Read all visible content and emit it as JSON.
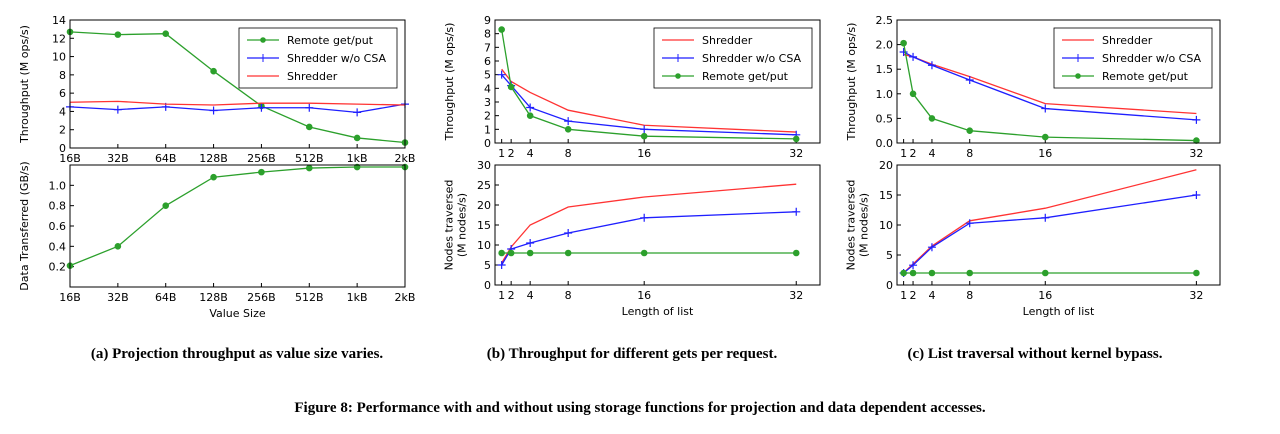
{
  "chart_data": [
    {
      "type": "line",
      "ylabel": "Throughput (M ops/s)",
      "categories": [
        "16B",
        "32B",
        "64B",
        "128B",
        "256B",
        "512B",
        "1kB",
        "2kB"
      ],
      "ylim": [
        0,
        14
      ],
      "yticks": [
        0,
        2,
        4,
        6,
        8,
        10,
        12,
        14
      ],
      "legend": "upper right",
      "series": [
        {
          "name": "Remote get/put",
          "color": "#2ca02c",
          "marker": "o",
          "values": [
            12.7,
            12.4,
            12.5,
            8.4,
            4.6,
            2.3,
            1.1,
            0.6
          ]
        },
        {
          "name": "Shredder w/o CSA",
          "color": "#1f1fff",
          "marker": "+",
          "values": [
            4.5,
            4.2,
            4.5,
            4.1,
            4.4,
            4.4,
            3.9,
            4.8
          ]
        },
        {
          "name": "Shredder",
          "color": "#ff3333",
          "marker": "none",
          "values": [
            5.0,
            5.1,
            4.8,
            4.7,
            4.9,
            4.9,
            4.8,
            4.7
          ]
        }
      ]
    },
    {
      "type": "line",
      "ylabel": "Data Transferred (GB/s)",
      "xlabel": "Value Size",
      "categories": [
        "16B",
        "32B",
        "64B",
        "128B",
        "256B",
        "512B",
        "1kB",
        "2kB"
      ],
      "ylim": [
        0,
        1.2
      ],
      "yticks": [
        0.2,
        0.4,
        0.6,
        0.8,
        {
          "value": 1.0,
          "label": "1.0"
        }
      ],
      "series": [
        {
          "color": "#2ca02c",
          "marker": "o",
          "values": [
            0.21,
            0.4,
            0.8,
            1.08,
            1.13,
            1.17,
            1.18,
            1.18
          ]
        }
      ]
    },
    {
      "type": "line",
      "ylabel": "Throughput (M ops/s)",
      "x": [
        1,
        2,
        4,
        8,
        16,
        32
      ],
      "xlim": [
        0.3,
        34.5
      ],
      "xticks": [
        1,
        2,
        4,
        8,
        16,
        32
      ],
      "ylim": [
        0,
        9
      ],
      "yticks": [
        0,
        1,
        2,
        3,
        4,
        5,
        6,
        7,
        8,
        9
      ],
      "legend": "upper right",
      "series": [
        {
          "name": "Shredder",
          "color": "#ff3333",
          "marker": "none",
          "values": [
            5.4,
            4.5,
            3.7,
            2.4,
            1.3,
            0.8
          ]
        },
        {
          "name": "Shredder w/o CSA",
          "color": "#1f1fff",
          "marker": "+",
          "values": [
            5.0,
            4.2,
            2.6,
            1.6,
            1.0,
            0.6
          ]
        },
        {
          "name": "Remote get/put",
          "color": "#2ca02c",
          "marker": "o",
          "values": [
            8.3,
            4.1,
            2.0,
            1.0,
            0.5,
            0.3
          ]
        }
      ]
    },
    {
      "type": "line",
      "ylabel": [
        "Nodes traversed",
        "(M nodes/s)"
      ],
      "xlabel": "Length of list",
      "x": [
        1,
        2,
        4,
        8,
        16,
        32
      ],
      "xlim": [
        0.3,
        34.5
      ],
      "xticks": [
        1,
        2,
        4,
        8,
        16,
        32
      ],
      "ylim": [
        0,
        30
      ],
      "yticks": [
        0,
        5,
        10,
        15,
        20,
        25,
        30
      ],
      "series": [
        {
          "color": "#ff3333",
          "marker": "none",
          "values": [
            5.5,
            9.5,
            15,
            19.5,
            22,
            25.2
          ]
        },
        {
          "color": "#1f1fff",
          "marker": "+",
          "values": [
            5.0,
            9.0,
            10.5,
            13,
            16.8,
            18.3
          ]
        },
        {
          "color": "#2ca02c",
          "marker": "o",
          "values": [
            8,
            8,
            8,
            8,
            8,
            8
          ]
        }
      ]
    },
    {
      "type": "line",
      "ylabel": "Throughput (M ops/s)",
      "x": [
        1,
        2,
        4,
        8,
        16,
        32
      ],
      "xlim": [
        0.3,
        34.5
      ],
      "xticks": [
        1,
        2,
        4,
        8,
        16,
        32
      ],
      "ylim": [
        0,
        2.5
      ],
      "yticks": [
        {
          "value": 0,
          "label": "0.0"
        },
        0.5,
        {
          "value": 1,
          "label": "1.0"
        },
        1.5,
        {
          "value": 2,
          "label": "2.0"
        },
        2.5
      ],
      "legend": "upper right",
      "series": [
        {
          "name": "Shredder",
          "color": "#ff3333",
          "marker": "none",
          "values": [
            1.8,
            1.75,
            1.6,
            1.35,
            0.8,
            0.6
          ]
        },
        {
          "name": "Shredder w/o CSA",
          "color": "#1f1fff",
          "marker": "+",
          "values": [
            1.85,
            1.75,
            1.58,
            1.28,
            0.7,
            0.47
          ]
        },
        {
          "name": "Remote get/put",
          "color": "#2ca02c",
          "marker": "o",
          "values": [
            2.03,
            1.0,
            0.5,
            0.25,
            0.12,
            0.05
          ]
        }
      ]
    },
    {
      "type": "line",
      "ylabel": [
        "Nodes traversed",
        "(M nodes/s)"
      ],
      "xlabel": "Length of list",
      "x": [
        1,
        2,
        4,
        8,
        16,
        32
      ],
      "xlim": [
        0.3,
        34.5
      ],
      "xticks": [
        1,
        2,
        4,
        8,
        16,
        32
      ],
      "ylim": [
        0,
        20
      ],
      "yticks": [
        0,
        5,
        10,
        15,
        20
      ],
      "series": [
        {
          "color": "#ff3333",
          "marker": "none",
          "values": [
            2,
            3.5,
            6.5,
            10.7,
            12.8,
            19.2
          ]
        },
        {
          "color": "#1f1fff",
          "marker": "+",
          "values": [
            2,
            3.3,
            6.3,
            10.3,
            11.2,
            15
          ]
        },
        {
          "color": "#2ca02c",
          "marker": "o",
          "values": [
            2,
            2,
            2,
            2,
            2,
            2
          ]
        }
      ]
    }
  ],
  "captions": [
    "(a) Projection throughput as value size varies.",
    "(b) Throughput for different gets per request.",
    "(c) List traversal without kernel bypass."
  ],
  "figure_caption": "Figure 8: Performance with and without using storage functions for projection and data dependent accesses."
}
